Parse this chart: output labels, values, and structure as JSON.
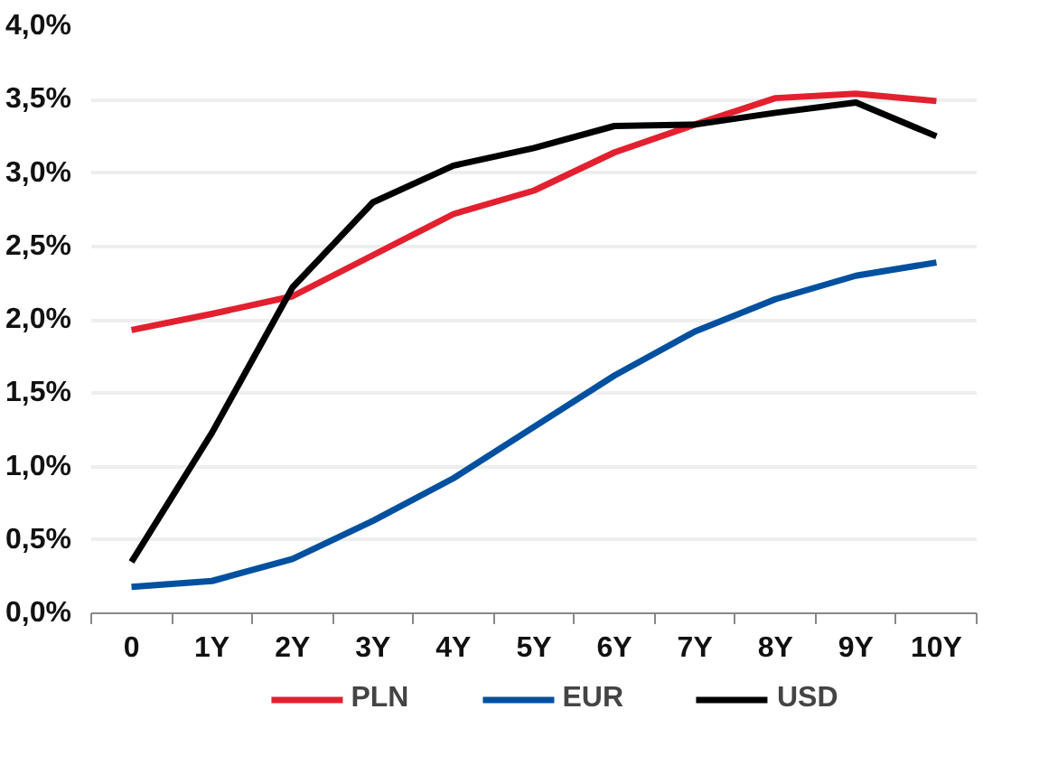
{
  "chart_data": {
    "type": "line",
    "categories": [
      "0",
      "1Y",
      "2Y",
      "3Y",
      "4Y",
      "5Y",
      "6Y",
      "7Y",
      "8Y",
      "9Y",
      "10Y"
    ],
    "series": [
      {
        "name": "PLN",
        "color": "#e3202f",
        "values": [
          1.93,
          2.04,
          2.16,
          2.44,
          2.72,
          2.88,
          3.14,
          3.33,
          3.51,
          3.54,
          3.49
        ]
      },
      {
        "name": "EUR",
        "color": "#0050a0",
        "values": [
          0.18,
          0.22,
          0.37,
          0.63,
          0.92,
          1.27,
          1.62,
          1.92,
          2.14,
          2.3,
          2.39
        ]
      },
      {
        "name": "USD",
        "color": "#000000",
        "values": [
          0.35,
          1.23,
          2.22,
          2.8,
          3.05,
          3.17,
          3.32,
          3.33,
          3.41,
          3.48,
          3.25
        ]
      }
    ],
    "ylim": [
      0,
      4
    ],
    "yticks": [
      {
        "value": 0,
        "label": "0,0%"
      },
      {
        "value": 0.5,
        "label": "0,5%"
      },
      {
        "value": 1,
        "label": "1,0%"
      },
      {
        "value": 1.5,
        "label": "1,5%"
      },
      {
        "value": 2,
        "label": "2,0%"
      },
      {
        "value": 2.5,
        "label": "2,5%"
      },
      {
        "value": 3,
        "label": "3,0%"
      },
      {
        "value": 3.5,
        "label": "3,5%"
      },
      {
        "value": 4,
        "label": "4,0%"
      }
    ],
    "grid": "y",
    "legend": "bottom",
    "marker": "none",
    "line_style": "solid"
  }
}
